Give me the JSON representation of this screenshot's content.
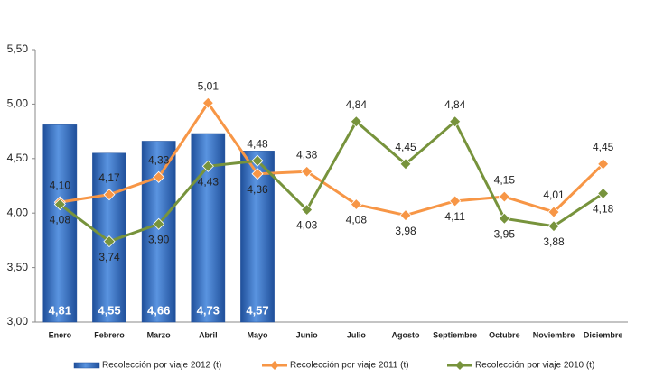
{
  "chart_data": {
    "type": "bar-line",
    "categories": [
      "Enero",
      "Febrero",
      "Marzo",
      "Abril",
      "Mayo",
      "Junio",
      "Julio",
      "Agosto",
      "Septiembre",
      "Octubre",
      "Noviembre",
      "Diciembre"
    ],
    "series": [
      {
        "name": "Recolección por viaje 2012 (t)",
        "type": "bar",
        "color": "#3a76c8",
        "values": [
          4.81,
          4.55,
          4.66,
          4.73,
          4.57,
          null,
          null,
          null,
          null,
          null,
          null,
          null
        ],
        "value_labels": [
          "4,81",
          "4,55",
          "4,66",
          "4,73",
          "4,57",
          null,
          null,
          null,
          null,
          null,
          null,
          null
        ]
      },
      {
        "name": "Recolección por viaje 2011 (t)",
        "type": "line",
        "color": "#f79646",
        "values": [
          4.1,
          4.17,
          4.33,
          5.01,
          4.36,
          4.38,
          4.08,
          3.98,
          4.11,
          4.15,
          4.01,
          4.45
        ],
        "value_labels": [
          "4,10",
          "4,17",
          "4,33",
          "5,01",
          "4,36",
          "4,38",
          "4,08",
          "3,98",
          "4,11",
          "4,15",
          "4,01",
          "4,45"
        ]
      },
      {
        "name": "Recolección por viaje 2010 (t)",
        "type": "line",
        "color": "#77933c",
        "values": [
          4.08,
          3.74,
          3.9,
          4.43,
          4.48,
          4.03,
          4.84,
          4.45,
          4.84,
          3.95,
          3.88,
          4.18
        ],
        "value_labels": [
          "4,08",
          "3,74",
          "3,90",
          "4,43",
          "4,48",
          "4,03",
          "4,84",
          "4,45",
          "4,84",
          "3,95",
          "3,88",
          "4,18"
        ]
      }
    ],
    "ylim": [
      3,
      5.5
    ],
    "yticks": [
      {
        "value": 3,
        "label": "3,00"
      },
      {
        "value": 3.5,
        "label": "3,50"
      },
      {
        "value": 4,
        "label": "4,00"
      },
      {
        "value": 4.5,
        "label": "4,50"
      },
      {
        "value": 5,
        "label": "5,00"
      },
      {
        "value": 5.5,
        "label": "5,50"
      }
    ],
    "grid": false,
    "legend": "bottom"
  }
}
